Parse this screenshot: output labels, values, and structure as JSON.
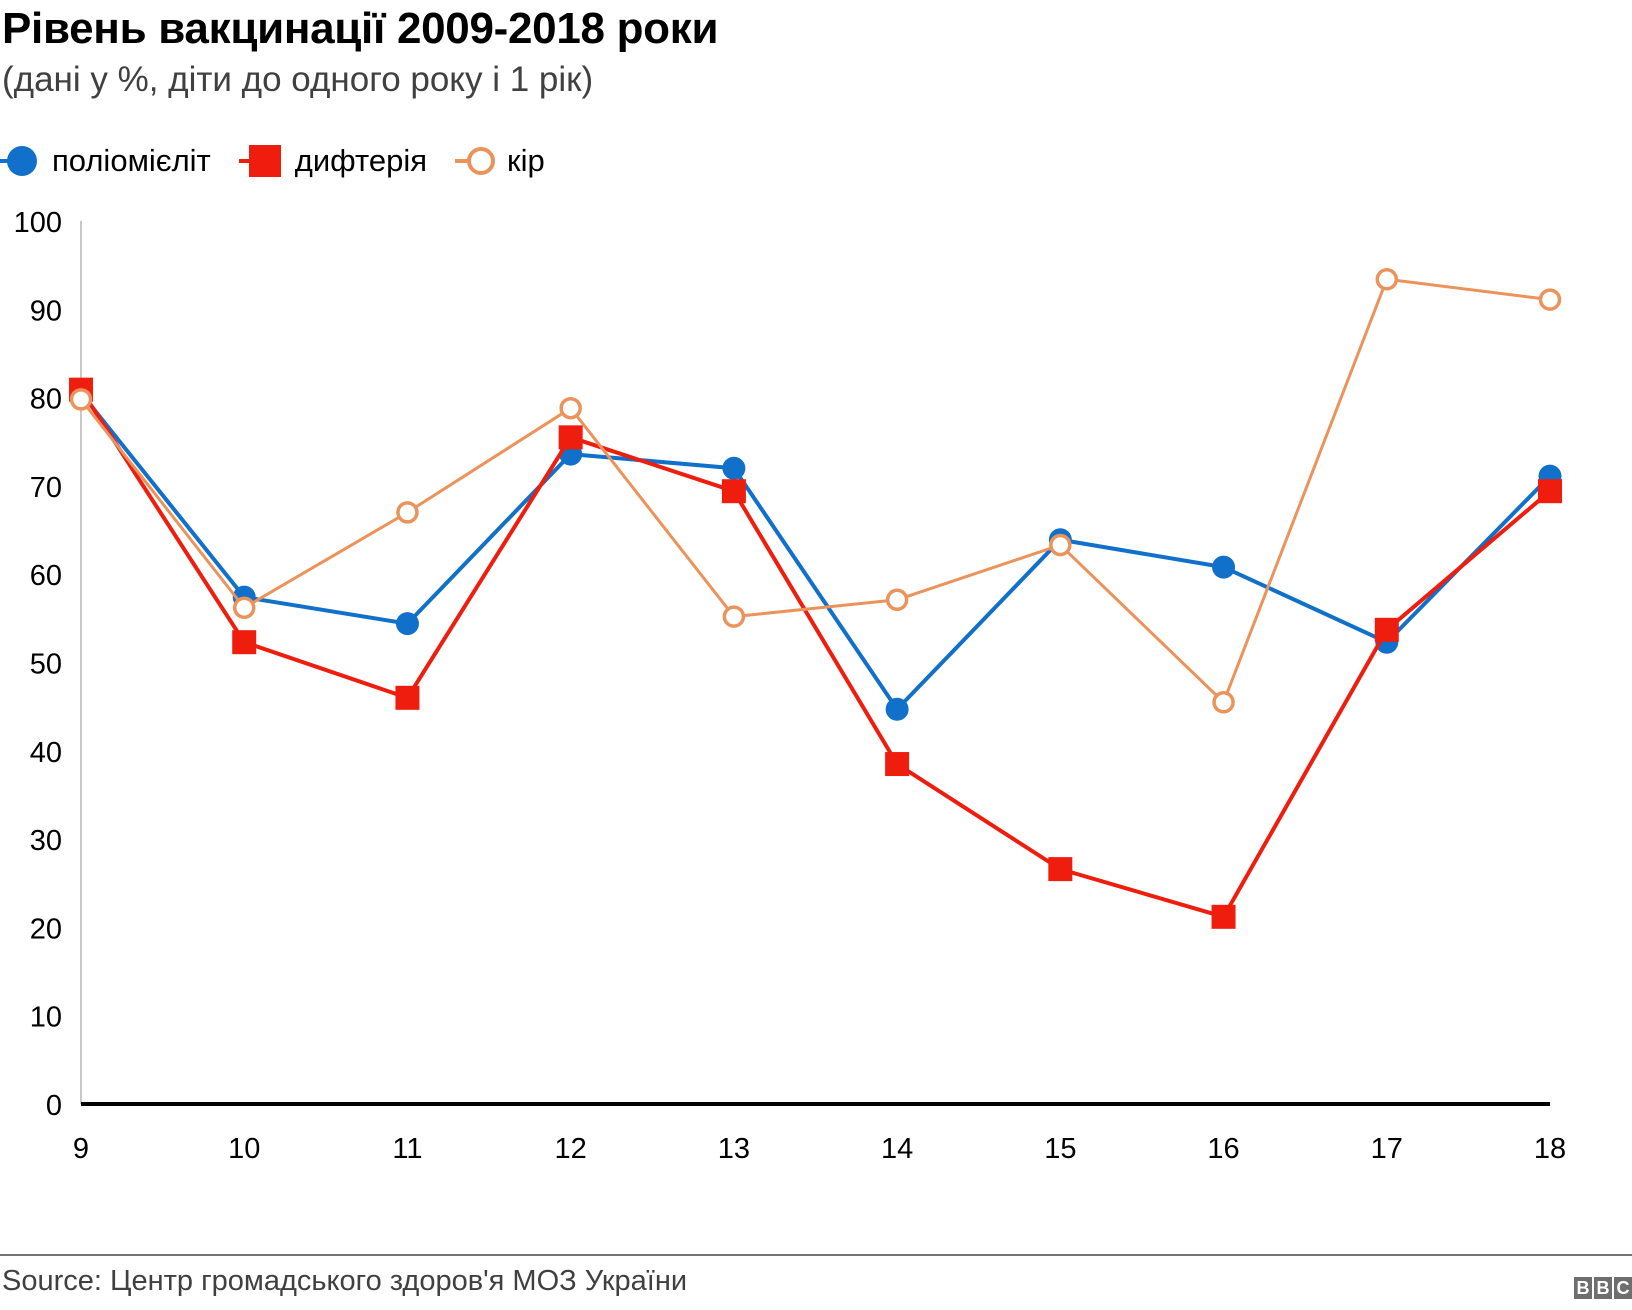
{
  "header": {
    "title": "Рівень вакцинації 2009-2018 роки",
    "subtitle": "(дані у %, діти до одного року і 1 рік)"
  },
  "footer": {
    "source": "Source: Центр громадського здоров'я МОЗ України",
    "logo": [
      "B",
      "B",
      "C"
    ]
  },
  "chart_data": {
    "type": "line",
    "title": "Рівень вакцинації 2009-2018 роки",
    "subtitle": "(дані у %, діти до одного року і 1 рік)",
    "xlabel": "",
    "ylabel": "",
    "x": [
      9,
      10,
      11,
      12,
      13,
      14,
      15,
      16,
      17,
      18
    ],
    "x_tick_labels": [
      "9",
      "10",
      "11",
      "12",
      "13",
      "14",
      "15",
      "16",
      "17",
      "18"
    ],
    "y_tick_labels": [
      "0",
      "10",
      "20",
      "30",
      "40",
      "50",
      "60",
      "70",
      "80",
      "90",
      "100"
    ],
    "xlim": [
      9,
      18
    ],
    "ylim": [
      0,
      100
    ],
    "grid": false,
    "legend_position": "top-left",
    "series": [
      {
        "name": "поліомієліт",
        "marker": "filled-circle",
        "color": "#1170c9",
        "values": [
          80.5,
          57.4,
          54.4,
          73.6,
          72.0,
          44.7,
          63.9,
          60.8,
          52.3,
          71.1
        ]
      },
      {
        "name": "дифтерія",
        "marker": "filled-square",
        "color": "#ee1d0e",
        "values": [
          80.9,
          52.3,
          46.0,
          75.5,
          69.4,
          38.5,
          26.6,
          21.2,
          53.7,
          69.4
        ]
      },
      {
        "name": "кір",
        "marker": "hollow-circle",
        "color": "#eb935b",
        "values": [
          79.8,
          56.2,
          67.0,
          78.8,
          55.2,
          57.1,
          63.3,
          45.5,
          93.4,
          91.1
        ]
      }
    ]
  }
}
